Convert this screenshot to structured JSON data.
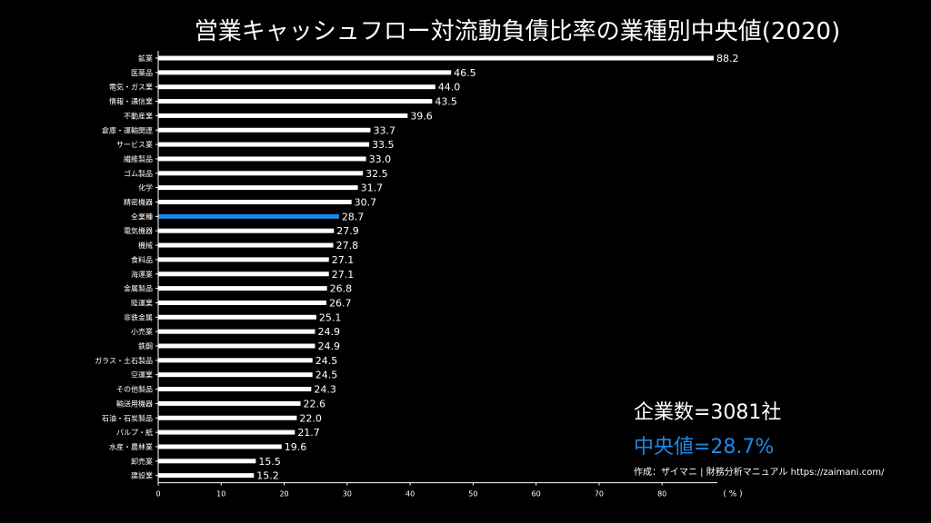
{
  "chart_data": {
    "type": "bar",
    "orientation": "horizontal",
    "title": "営業キャッシュフロー対流動負債比率の業種別中央値(2020)",
    "xlabel": "( % )",
    "ylabel": "",
    "xlim": [
      0,
      88.2
    ],
    "xticks": [
      0,
      10,
      20,
      30,
      40,
      50,
      60,
      70,
      80
    ],
    "grid": false,
    "legend": "none",
    "bar_color": "#ffffff",
    "highlight_color": "#1e88e5",
    "highlight_category": "全業種",
    "categories": [
      "鉱業",
      "医薬品",
      "電気・ガス業",
      "情報・通信業",
      "不動産業",
      "倉庫・運輸関連",
      "サービス業",
      "繊維製品",
      "ゴム製品",
      "化学",
      "精密機器",
      "全業種",
      "電気機器",
      "機械",
      "食料品",
      "海運業",
      "金属製品",
      "陸運業",
      "非鉄金属",
      "小売業",
      "鉄鋼",
      "ガラス・土石製品",
      "空運業",
      "その他製品",
      "輸送用機器",
      "石油・石炭製品",
      "パルプ・紙",
      "水産・農林業",
      "卸売業",
      "建設業"
    ],
    "values": [
      88.2,
      46.5,
      44.0,
      43.5,
      39.6,
      33.7,
      33.5,
      33.0,
      32.5,
      31.7,
      30.7,
      28.7,
      27.9,
      27.8,
      27.1,
      27.1,
      26.8,
      26.7,
      25.1,
      24.9,
      24.9,
      24.5,
      24.5,
      24.3,
      22.6,
      22.0,
      21.7,
      19.6,
      15.5,
      15.2
    ],
    "value_labels": [
      "88.2",
      "46.5",
      "44.0",
      "43.5",
      "39.6",
      "33.7",
      "33.5",
      "33.0",
      "32.5",
      "31.7",
      "30.7",
      "28.7",
      "27.9",
      "27.8",
      "27.1",
      "27.1",
      "26.8",
      "26.7",
      "25.1",
      "24.9",
      "24.9",
      "24.5",
      "24.5",
      "24.3",
      "22.6",
      "22.0",
      "21.7",
      "19.6",
      "15.5",
      "15.2"
    ]
  },
  "summary": {
    "company_count": "企業数=3081社",
    "median": "中央値=28.7%"
  },
  "credit": "作成：ザイマニ | 財務分析マニュアル https://zaimani.com/"
}
